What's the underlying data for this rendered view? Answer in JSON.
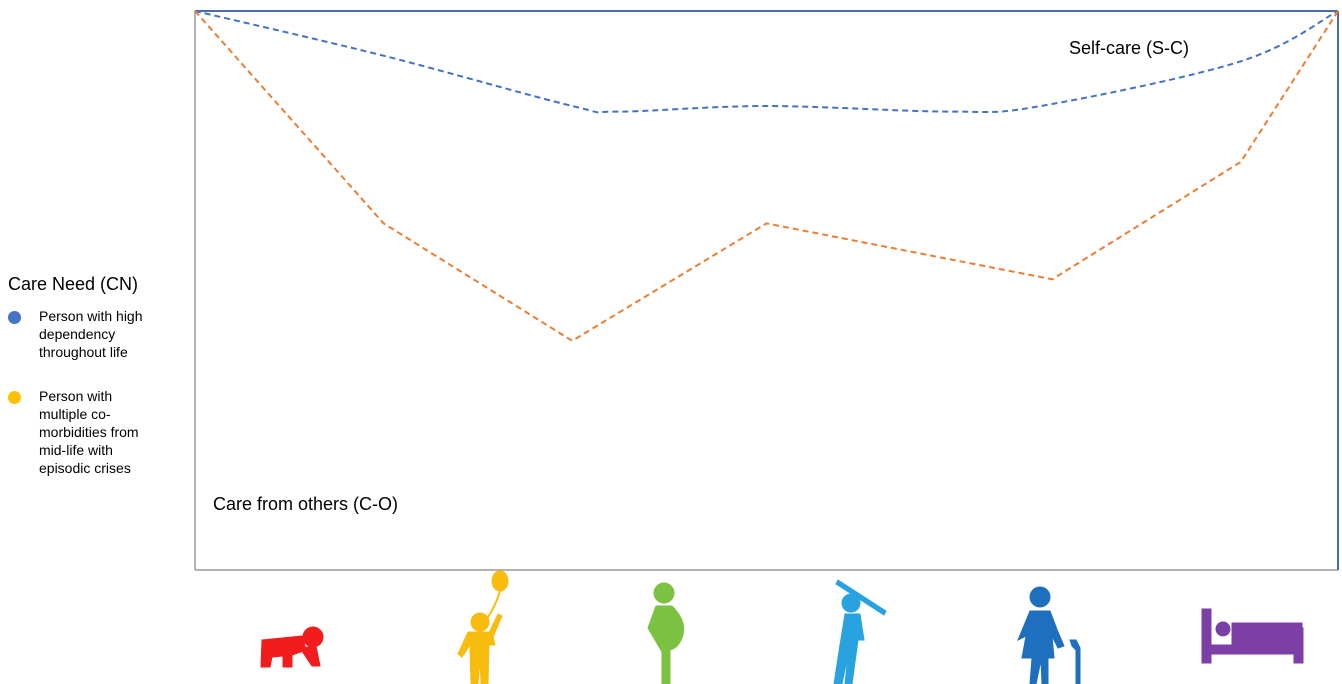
{
  "chart_data": {
    "type": "line",
    "title": "",
    "xlabel": "",
    "ylabel": "",
    "x_axis_icons": [
      "crawling-baby-icon",
      "child-with-balloon-icon",
      "pregnant-woman-icon",
      "golfer-icon",
      "elderly-person-with-cane-icon",
      "person-in-bed-icon"
    ],
    "icon_colors": [
      "#f21c1c",
      "#f7bc0e",
      "#7cc242",
      "#29a3e0",
      "#1f6fbf",
      "#7b3fa6"
    ],
    "ylim": [
      0,
      100
    ],
    "annotations": {
      "top": "Self-care (S-C)",
      "bottom": "Care from others (C-O)"
    },
    "legend": {
      "title": "Care Need (CN)",
      "entries": [
        {
          "label": "Person with high dependency throughout life",
          "color": "#4472c4"
        },
        {
          "label": "Person with multiple co-morbidities from mid-life with episodic crises",
          "color": "#ffc000"
        }
      ]
    },
    "series": [
      {
        "line_color": "#4472c4",
        "points": [
          {
            "x": 0,
            "y": 100
          },
          {
            "x": 16.5,
            "y": 92
          },
          {
            "x": 33,
            "y": 83
          },
          {
            "x": 37,
            "y": 82
          },
          {
            "x": 50,
            "y": 83
          },
          {
            "x": 66,
            "y": 82
          },
          {
            "x": 74,
            "y": 83
          },
          {
            "x": 91.5,
            "y": 91
          },
          {
            "x": 100,
            "y": 100
          }
        ]
      },
      {
        "line_color": "#ed7d31",
        "points": [
          {
            "x": 0,
            "y": 100
          },
          {
            "x": 16.5,
            "y": 62
          },
          {
            "x": 33,
            "y": 41
          },
          {
            "x": 50,
            "y": 62
          },
          {
            "x": 75,
            "y": 52
          },
          {
            "x": 91.5,
            "y": 73
          },
          {
            "x": 100,
            "y": 100
          }
        ]
      }
    ]
  }
}
